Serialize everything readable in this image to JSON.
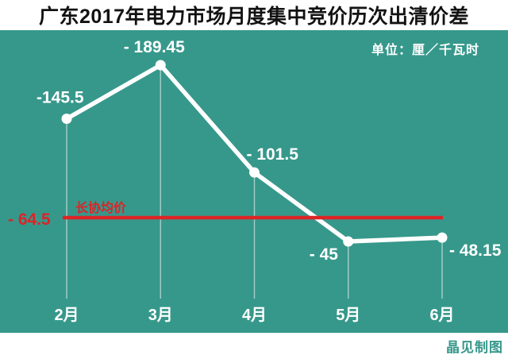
{
  "title": "广东2017年电力市场月度集中竞价历次出清价差",
  "unit_label": "单位：厘／千瓦时",
  "credit": "晶见制图",
  "colors": {
    "background": "#36988b",
    "series_line": "#ffffff",
    "benchmark_line": "#dc2426",
    "title_text": "#121212",
    "credit_text": "#36988b"
  },
  "chart_data": {
    "type": "line",
    "title": "广东2017年电力市场月度集中竞价历次出清价差",
    "unit": "厘／千瓦时",
    "categories": [
      "2月",
      "3月",
      "4月",
      "5月",
      "6月"
    ],
    "values": [
      -145.5,
      -189.45,
      -101.5,
      -45,
      -48.15
    ],
    "point_labels": [
      "-145.5",
      "- 189.45",
      "- 101.5",
      "- 45",
      "- 48.15"
    ],
    "benchmark": {
      "label": "长协均价",
      "value": -64.5,
      "value_label": "- 64.5"
    },
    "xlabel": "",
    "ylabel": "",
    "grid": "off",
    "legend": "none",
    "note": "y axis not drawn; larger negative magnitude plotted higher"
  }
}
